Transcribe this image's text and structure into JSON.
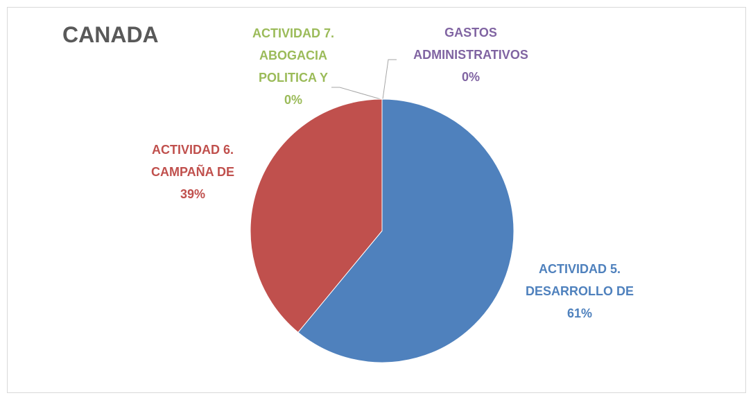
{
  "chart_data": {
    "type": "pie",
    "title": "CANADA",
    "categories": [
      "ACTIVIDAD 5. DESARROLLO DE",
      "ACTIVIDAD 6. CAMPAÑA DE",
      "ACTIVIDAD 7. ABOGACIA POLITICA Y",
      "GASTOS ADMINISTRATIVOS"
    ],
    "values": [
      61,
      39,
      0,
      0
    ],
    "value_labels": [
      "61%",
      "39%",
      "0%",
      "0%"
    ],
    "colors": [
      "#4f81bd",
      "#c0504d",
      "#9bbb59",
      "#8064a2"
    ]
  }
}
